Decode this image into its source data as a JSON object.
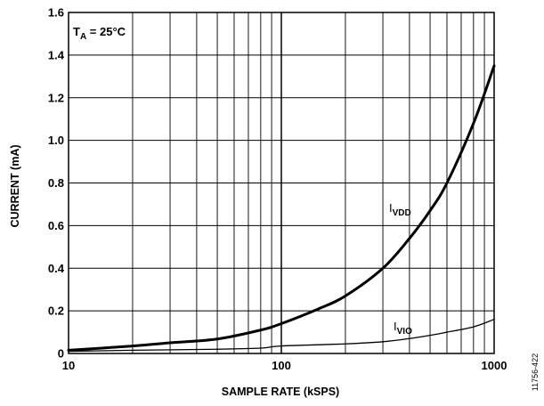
{
  "chart_data": {
    "type": "line",
    "xscale": "log",
    "xlim": [
      10,
      1000
    ],
    "ylim": [
      0,
      1.6
    ],
    "grid": true,
    "xlabel": "SAMPLE RATE (kSPS)",
    "ylabel": "CURRENT (mA)",
    "x_ticks": [
      "10",
      "100",
      "1000"
    ],
    "y_ticks": [
      "0",
      "0.2",
      "0.4",
      "0.6",
      "0.8",
      "1.0",
      "1.2",
      "1.4",
      "1.6"
    ],
    "condition": {
      "symbol": "T",
      "subscript": "A",
      "value": " = 25°C"
    },
    "series": [
      {
        "name": "IVDD",
        "label_main": "I",
        "label_sub": "VDD",
        "x": [
          10,
          20,
          30,
          50,
          80,
          100,
          150,
          200,
          300,
          400,
          500,
          600,
          800,
          1000
        ],
        "y": [
          0.015,
          0.035,
          0.05,
          0.068,
          0.11,
          0.14,
          0.21,
          0.27,
          0.4,
          0.54,
          0.67,
          0.8,
          1.08,
          1.35
        ],
        "color": "#000000",
        "stroke": "thick"
      },
      {
        "name": "IVIO",
        "label_main": "I",
        "label_sub": "VIO",
        "x": [
          10,
          20,
          50,
          80,
          100,
          200,
          300,
          400,
          500,
          600,
          800,
          1000
        ],
        "y": [
          0.01,
          0.015,
          0.02,
          0.025,
          0.035,
          0.045,
          0.055,
          0.07,
          0.085,
          0.1,
          0.125,
          0.16
        ],
        "color": "#000000",
        "stroke": "thin"
      }
    ]
  },
  "figure_id": "11756-422"
}
